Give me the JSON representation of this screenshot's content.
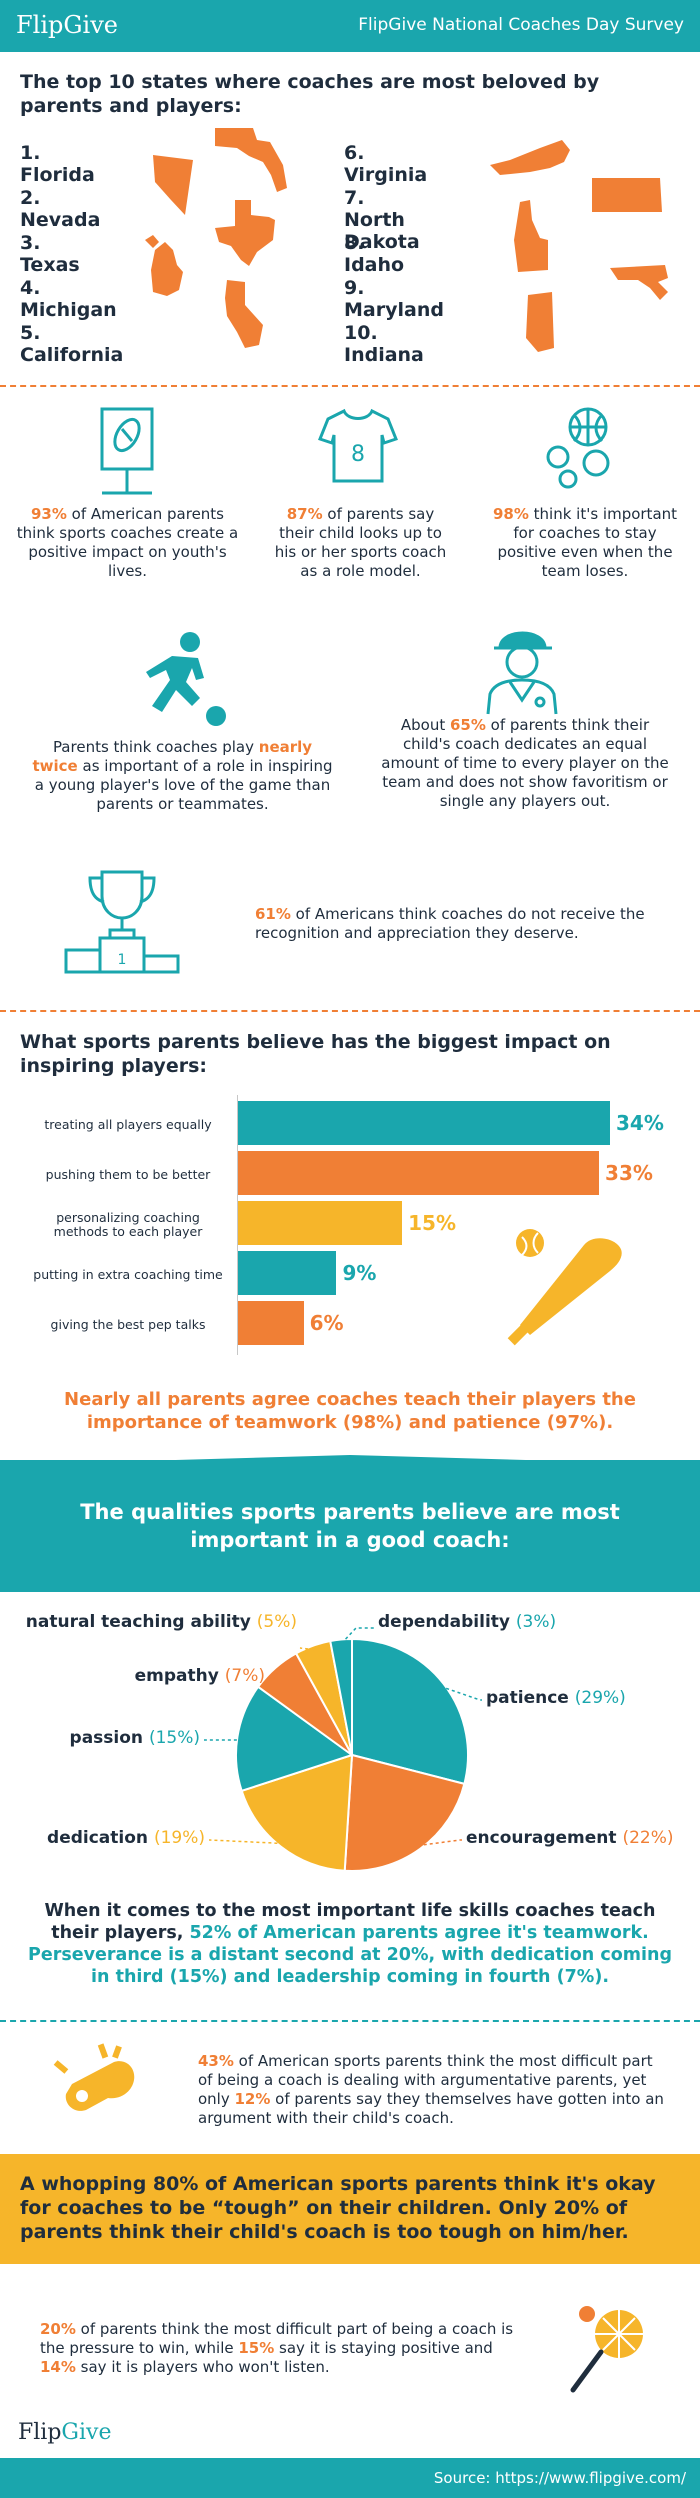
{
  "header": {
    "brand": "FlipGive",
    "title": "FlipGive National Coaches Day Survey"
  },
  "states": {
    "heading": "The top 10 states where coaches are most beloved by parents and players:",
    "items": [
      "1. Florida",
      "2. Nevada",
      "3. Texas",
      "4. Michigan",
      "5. California",
      "6. Virginia",
      "7. North Dakota",
      "8. Idaho",
      "9. Maryland",
      "10. Indiana"
    ]
  },
  "stats": {
    "s1_pct": "93%",
    "s1_text": " of American parents think sports coaches create a positive impact on youth's lives.",
    "s2_pct": "87%",
    "s2_text": " of parents say their child looks up to his or her sports coach as a role model.",
    "s3_pct": "98%",
    "s3_text": " think it's important for coaches to stay positive even when the team loses.",
    "s4_pre": "Parents think coaches play ",
    "s4_hl": "nearly twice",
    "s4_post": " as important of a role in inspiring a young player's love of the game than parents or teammates.",
    "s5_pre": "About ",
    "s5_hl": "65%",
    "s5_post": " of parents think their child's coach dedicates an equal amount of time to every player on the team and does not show favoritism or single any players out.",
    "s6_pct": "61%",
    "s6_text": " of Americans think coaches do not receive the recognition and appreciation they deserve."
  },
  "chart_data": [
    {
      "type": "bar",
      "title": "What sports parents believe has the biggest impact on inspiring players:",
      "categories": [
        "treating all players equally",
        "pushing them to be better",
        "personalizing coaching methods to each player",
        "putting in extra coaching time",
        "giving the best pep talks"
      ],
      "values": [
        34,
        33,
        15,
        9,
        6
      ],
      "value_labels": [
        "34%",
        "33%",
        "15%",
        "9%",
        "6%"
      ],
      "colors": [
        "#1aa6ad",
        "#f07f35",
        "#f6b52a",
        "#1aa6ad",
        "#f07f35"
      ],
      "orientation": "horizontal"
    },
    {
      "type": "pie",
      "title": "The qualities sports parents believe are most important in a good coach:",
      "slices": [
        {
          "label": "patience",
          "pct_label": "(29%)",
          "value": 29,
          "color": "#1aa6ad"
        },
        {
          "label": "encouragement",
          "pct_label": "(22%)",
          "value": 22,
          "color": "#f07f35"
        },
        {
          "label": "dedication",
          "pct_label": "(19%)",
          "value": 19,
          "color": "#f6b52a"
        },
        {
          "label": "passion",
          "pct_label": "(15%)",
          "value": 15,
          "color": "#1aa6ad"
        },
        {
          "label": "empathy",
          "pct_label": "(7%)",
          "value": 7,
          "color": "#f07f35"
        },
        {
          "label": "natural teaching ability",
          "pct_label": "(5%)",
          "value": 5,
          "color": "#f6b52a"
        },
        {
          "label": "dependability",
          "pct_label": "(3%)",
          "value": 3,
          "color": "#1aa6ad"
        }
      ]
    }
  ],
  "teamwork": {
    "pre": "Nearly all parents agree coaches teach their players the importance of ",
    "t1": "teamwork (98%)",
    "mid": " and ",
    "t2": "patience (97%)."
  },
  "skills": {
    "pre": "When it comes to the most important life skills coaches teach their players, ",
    "hl": "52% of American parents agree it's teamwork. Perseverance is a distant second at 20%, with dedication coming in third (15%) and leadership coming in fourth (7%)."
  },
  "argument": {
    "p1": "43%",
    "t1": " of American sports parents think the most difficult part of being a coach is dealing with argumentative parents, yet only ",
    "p2": "12%",
    "t2": " of parents say they themselves have gotten into an argument with their child's coach."
  },
  "tough": {
    "text": "A whopping 80% of American sports parents think it's okay for coaches to be “tough” on their children. Only 20% of parents think their child's coach is too tough on him/her."
  },
  "pressure": {
    "p1": "20%",
    "t1": " of parents think the most difficult part of being a coach is the pressure to win, while ",
    "p2": "15%",
    "t2": " say it is staying positive and ",
    "p3": "14%",
    "t3": " say it is players who won't listen."
  },
  "footer": {
    "brand_a": "Flip",
    "brand_b": "Give",
    "source": "Source: https://www.flipgive.com/"
  }
}
